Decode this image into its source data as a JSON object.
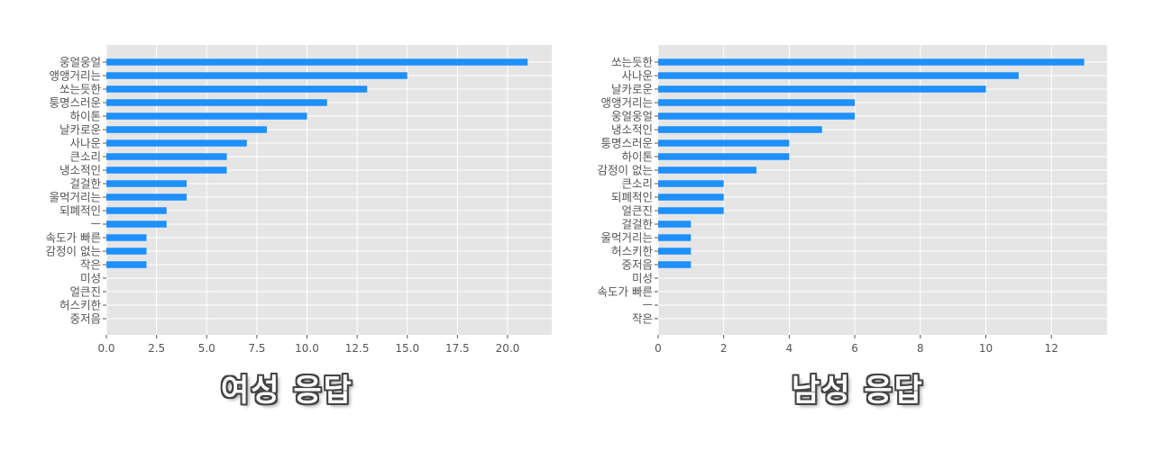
{
  "captions": {
    "female": "여성 응답",
    "male": "남성 응답"
  },
  "colors": {
    "bar": "#1e90ff",
    "panel_bg": "#e5e5e5",
    "grid": "#ffffff",
    "text": "#555555"
  },
  "chart_data": [
    {
      "type": "bar",
      "orientation": "horizontal",
      "categories": [
        "웅얼웅얼",
        "앵앵거리는",
        "쏘는듯한",
        "퉁명스러운",
        "하이톤",
        "날카로운",
        "사나운",
        "큰소리",
        "냉소적인",
        "걸걸한",
        "울먹거리는",
        "되폐적인",
        "ㅡ",
        "속도가 빠른",
        "감정이 없는",
        "작은",
        "미성",
        "얼큰진",
        "허스키한",
        "중저음"
      ],
      "values": [
        21,
        15,
        13,
        11,
        10,
        8,
        7,
        6,
        6,
        4,
        4,
        3,
        3,
        2,
        2,
        2,
        0,
        0,
        0,
        0
      ],
      "xticks": [
        "0.0",
        "2.5",
        "5.0",
        "7.5",
        "10.0",
        "12.5",
        "15.0",
        "17.5",
        "20.0"
      ],
      "xlim": [
        0,
        22.2
      ],
      "xlabel": "",
      "ylabel": "",
      "grid": true
    },
    {
      "type": "bar",
      "orientation": "horizontal",
      "categories": [
        "쏘는듯한",
        "사나운",
        "날카로운",
        "앵앵거리는",
        "웅얼웅얼",
        "냉소적인",
        "퉁명스러운",
        "하이톤",
        "감정이 없는",
        "큰소리",
        "되폐적인",
        "얼큰진",
        "걸걸한",
        "울먹거리는",
        "허스키한",
        "중저음",
        "미성",
        "속도가 빠른",
        "ㅡ",
        "작은"
      ],
      "values": [
        13,
        11,
        10,
        6,
        6,
        5,
        4,
        4,
        3,
        2,
        2,
        2,
        1,
        1,
        1,
        1,
        0,
        0,
        0,
        0
      ],
      "xticks": [
        "0",
        "2",
        "4",
        "6",
        "8",
        "10",
        "12"
      ],
      "xlim": [
        0,
        13.7
      ],
      "xlabel": "",
      "ylabel": "",
      "grid": true
    }
  ]
}
